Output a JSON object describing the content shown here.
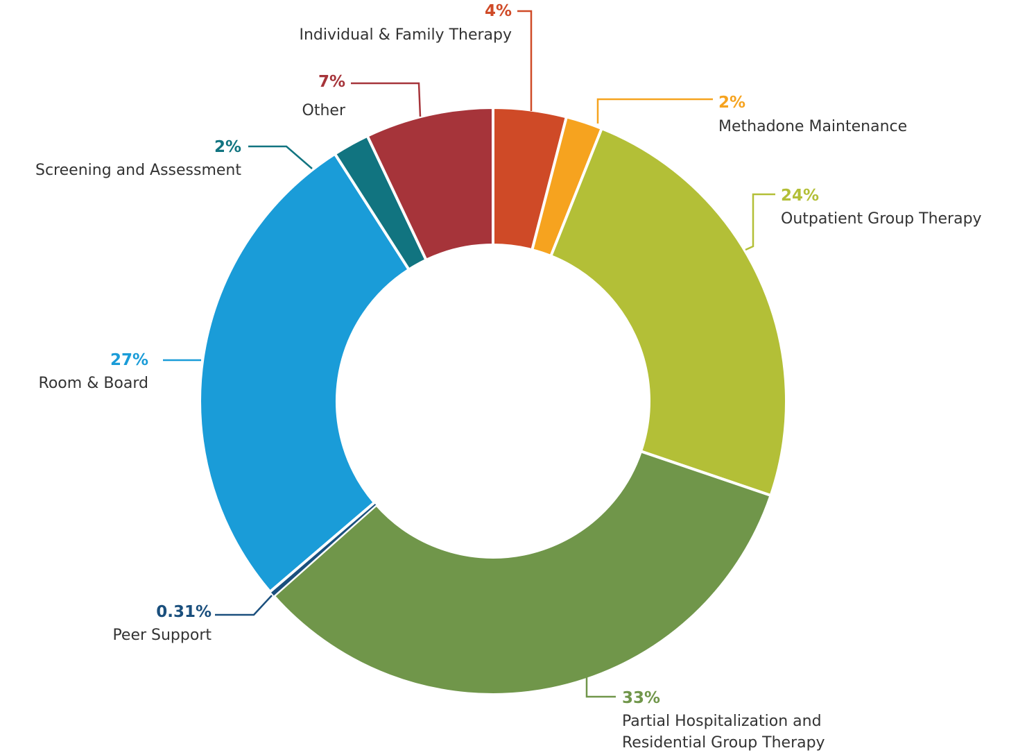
{
  "chart_data": {
    "type": "donut",
    "categories": [
      "Individual & Family Therapy",
      "Methadone Maintenance",
      "Outpatient Group Therapy",
      "Partial Hospitalization and Residential Group Therapy",
      "Peer Support",
      "Room & Board",
      "Screening and Assessment",
      "Other"
    ],
    "values": [
      4,
      2,
      24,
      33,
      0.31,
      27,
      2,
      7
    ],
    "value_labels": [
      "4%",
      "2%",
      "24%",
      "33%",
      "0.31%",
      "27%",
      "2%",
      "7%"
    ],
    "colors": [
      "#cf4a27",
      "#f6a31f",
      "#b3bf37",
      "#70964a",
      "#1a4f7d",
      "#1a9cd8",
      "#117480",
      "#a6343a"
    ]
  }
}
